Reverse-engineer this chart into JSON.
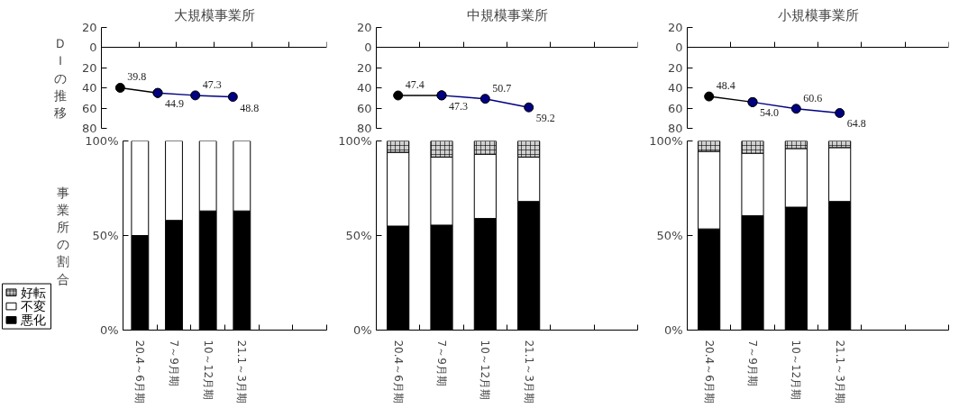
{
  "chart_data": [
    {
      "type": "line",
      "title": "大規模事業所",
      "ylabel": "ＤＩの推移",
      "categories": [
        null,
        null,
        null,
        null,
        null,
        null
      ],
      "ylim": [
        80,
        -20
      ],
      "yticks": [
        {
          "value": -20,
          "label": "20"
        },
        0,
        20,
        40,
        60,
        80
      ],
      "tick_labels": "y",
      "marker": "circle",
      "series": [
        {
          "color": "#000000",
          "values": [
            39.8,
            44.9,
            null,
            null,
            null,
            null
          ],
          "value_labels": [
            "39.8",
            "44.9",
            null,
            null,
            null,
            null
          ]
        },
        {
          "color": "#000080",
          "values": [
            null,
            44.9,
            47.3,
            48.8,
            null,
            null
          ],
          "value_labels": [
            null,
            null,
            "47.3",
            "48.8",
            null,
            null
          ]
        }
      ]
    },
    {
      "type": "line",
      "title": "中規模事業所",
      "categories": [
        null,
        null,
        null,
        null,
        null,
        null
      ],
      "ylim": [
        80,
        -20
      ],
      "yticks": [
        {
          "value": -20,
          "label": "20"
        },
        0,
        20,
        40,
        60,
        80
      ],
      "tick_labels": "y",
      "marker": "circle",
      "series": [
        {
          "color": "#000000",
          "values": [
            47.4,
            47.3,
            null,
            null,
            null,
            null
          ],
          "value_labels": [
            "47.4",
            "47.3",
            null,
            null,
            null,
            null
          ]
        },
        {
          "color": "#000080",
          "values": [
            null,
            47.3,
            50.7,
            59.2,
            null,
            null
          ],
          "value_labels": [
            null,
            null,
            "50.7",
            "59.2",
            null,
            null
          ]
        }
      ]
    },
    {
      "type": "line",
      "title": "小規模事業所",
      "categories": [
        null,
        null,
        null,
        null,
        null,
        null
      ],
      "ylim": [
        80,
        -20
      ],
      "yticks": [
        {
          "value": -20,
          "label": "20"
        },
        0,
        20,
        40,
        60,
        80
      ],
      "tick_labels": "y",
      "marker": "circle",
      "series": [
        {
          "color": "#000000",
          "values": [
            48.4,
            54.0,
            null,
            null,
            null,
            null
          ],
          "value_labels": [
            "48.4",
            "54.0",
            null,
            null,
            null,
            null
          ]
        },
        {
          "color": "#000080",
          "values": [
            null,
            54.0,
            60.6,
            64.8,
            null,
            null
          ],
          "value_labels": [
            null,
            null,
            "60.6",
            "64.8",
            null,
            null
          ]
        }
      ]
    },
    {
      "type": "bar",
      "stacked": true,
      "ylabel": "事業所の割合",
      "legend": "bottom left",
      "categories": [
        "20.4～6月期",
        "7～9月期",
        "10～12月期",
        "21.1～3月期",
        null,
        null
      ],
      "ylim": [
        0,
        100
      ],
      "yticks": [
        {
          "value": 0,
          "label": "0%"
        },
        {
          "value": 50,
          "label": "50%"
        },
        {
          "value": 100,
          "label": "100%"
        }
      ],
      "series": [
        {
          "name": "悪化",
          "color": "#000000",
          "values": [
            50,
            58,
            63,
            63,
            null,
            null
          ]
        },
        {
          "name": "不変",
          "color": "#ffffff",
          "values": [
            50,
            42,
            37,
            37,
            null,
            null
          ]
        },
        {
          "name": "好転",
          "color": "#d0d0d0",
          "values": [
            0,
            0,
            0,
            0,
            null,
            null
          ]
        }
      ]
    },
    {
      "type": "bar",
      "stacked": true,
      "categories": [
        "20.4～6月期",
        "7～9月期",
        "10～12月期",
        "21.1～3月期",
        null,
        null
      ],
      "ylim": [
        0,
        100
      ],
      "yticks": [
        {
          "value": 0,
          "label": "0%"
        },
        {
          "value": 50,
          "label": "50%"
        },
        {
          "value": 100,
          "label": "100%"
        }
      ],
      "series": [
        {
          "color": "#000000",
          "values": [
            55,
            55.5,
            59,
            68,
            null,
            null
          ]
        },
        {
          "color": "#ffffff",
          "values": [
            39,
            36,
            34,
            23.5,
            null,
            null
          ]
        },
        {
          "color": "#d0d0d0",
          "values": [
            6,
            8.5,
            7,
            8.5,
            null,
            null
          ]
        }
      ]
    },
    {
      "type": "bar",
      "stacked": true,
      "categories": [
        "20.4～6月期",
        "7～9月期",
        "10～12月期",
        "21.1～3月期",
        null,
        null
      ],
      "ylim": [
        0,
        100
      ],
      "yticks": [
        {
          "value": 0,
          "label": "0%"
        },
        {
          "value": 50,
          "label": "50%"
        },
        {
          "value": 100,
          "label": "100%"
        }
      ],
      "series": [
        {
          "color": "#000000",
          "values": [
            53.5,
            60.5,
            65,
            68,
            null,
            null
          ]
        },
        {
          "color": "#ffffff",
          "values": [
            41,
            33,
            31,
            28.5,
            null,
            null
          ]
        },
        {
          "color": "#d0d0d0",
          "values": [
            5.5,
            6.5,
            4,
            3.5,
            null,
            null
          ]
        }
      ]
    }
  ]
}
